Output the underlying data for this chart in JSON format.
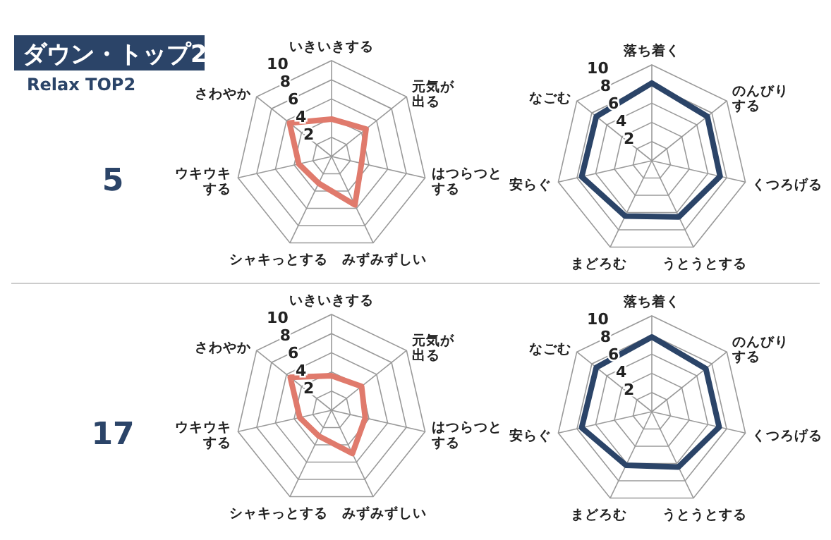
{
  "chart_data": [
    {
      "type": "radar",
      "title": "ダウン・トップ2",
      "subtitle": "Relax TOP2",
      "annotations": [
        "5"
      ],
      "categories": [
        "いきいきする",
        "元気が出る",
        "はつらつとする",
        "みずみずしい",
        "シャキっとする",
        "ウキウキする",
        "さわやか"
      ],
      "series": [
        {
          "color": "#e07a6c",
          "values": [
            3.9,
            4.6,
            3.2,
            5.6,
            3.1,
            3.5,
            5.6
          ]
        }
      ],
      "ylim": [
        0,
        10
      ],
      "yticks": [
        2,
        4,
        6,
        8,
        10
      ],
      "grid": true
    },
    {
      "type": "radar",
      "categories": [
        "落ち着く",
        "のんびりする",
        "くつろげる",
        "うとうとする",
        "まどろむ",
        "安らぐ",
        "なごむ"
      ],
      "series": [
        {
          "color": "#2b4468",
          "values": [
            8.1,
            7.4,
            7.3,
            6.5,
            6.4,
            7.5,
            7.4
          ]
        }
      ],
      "ylim": [
        0,
        10
      ],
      "yticks": [
        2,
        4,
        6,
        8,
        10
      ],
      "grid": true
    },
    {
      "type": "radar",
      "annotations": [
        "17"
      ],
      "categories": [
        "いきいきする",
        "元気が出る",
        "はつらつとする",
        "みずみずしい",
        "シャキっとする",
        "ウキウキする",
        "さわやか"
      ],
      "series": [
        {
          "color": "#e07a6c",
          "values": [
            3.6,
            4.0,
            3.6,
            5.0,
            3.0,
            3.4,
            5.5
          ]
        }
      ],
      "ylim": [
        0,
        10
      ],
      "yticks": [
        2,
        4,
        6,
        8,
        10
      ],
      "grid": true
    },
    {
      "type": "radar",
      "categories": [
        "落ち着く",
        "のんびりする",
        "くつろげる",
        "うとうとする",
        "まどろむ",
        "安らぐ",
        "なごむ"
      ],
      "series": [
        {
          "color": "#2b4468",
          "values": [
            7.8,
            7.2,
            7.2,
            6.4,
            6.2,
            7.5,
            7.4
          ]
        }
      ],
      "ylim": [
        0,
        10
      ],
      "yticks": [
        2,
        4,
        6,
        8,
        10
      ],
      "grid": true
    }
  ]
}
